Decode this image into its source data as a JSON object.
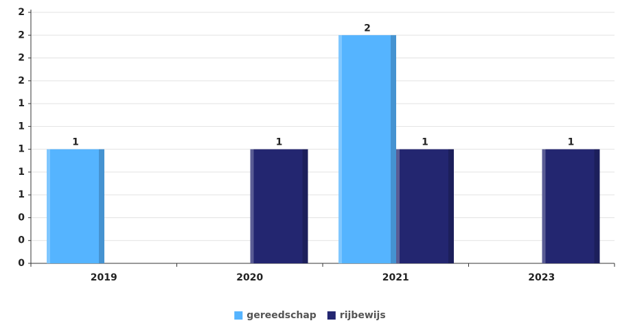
{
  "chart_data": {
    "type": "bar",
    "categories": [
      "2019",
      "2020",
      "2021",
      "2023"
    ],
    "series": [
      {
        "name": "gereedschap",
        "color": "#55b4ff",
        "values": [
          1,
          null,
          2,
          null
        ]
      },
      {
        "name": "rijbewijs",
        "color": "#232670",
        "values": [
          null,
          1,
          1,
          1
        ]
      }
    ],
    "ylim": [
      0,
      2.2
    ],
    "yticks": [
      {
        "value": 0,
        "label": "0"
      },
      {
        "value": 0.2,
        "label": "0"
      },
      {
        "value": 0.4,
        "label": "0"
      },
      {
        "value": 0.6,
        "label": "1"
      },
      {
        "value": 0.8,
        "label": "1"
      },
      {
        "value": 1.0,
        "label": "1"
      },
      {
        "value": 1.2,
        "label": "1"
      },
      {
        "value": 1.4,
        "label": "1"
      },
      {
        "value": 1.6,
        "label": "2"
      },
      {
        "value": 1.8,
        "label": "2"
      },
      {
        "value": 2.0,
        "label": "2"
      },
      {
        "value": 2.2,
        "label": "2"
      }
    ],
    "grid": true,
    "legend": "bottom"
  }
}
